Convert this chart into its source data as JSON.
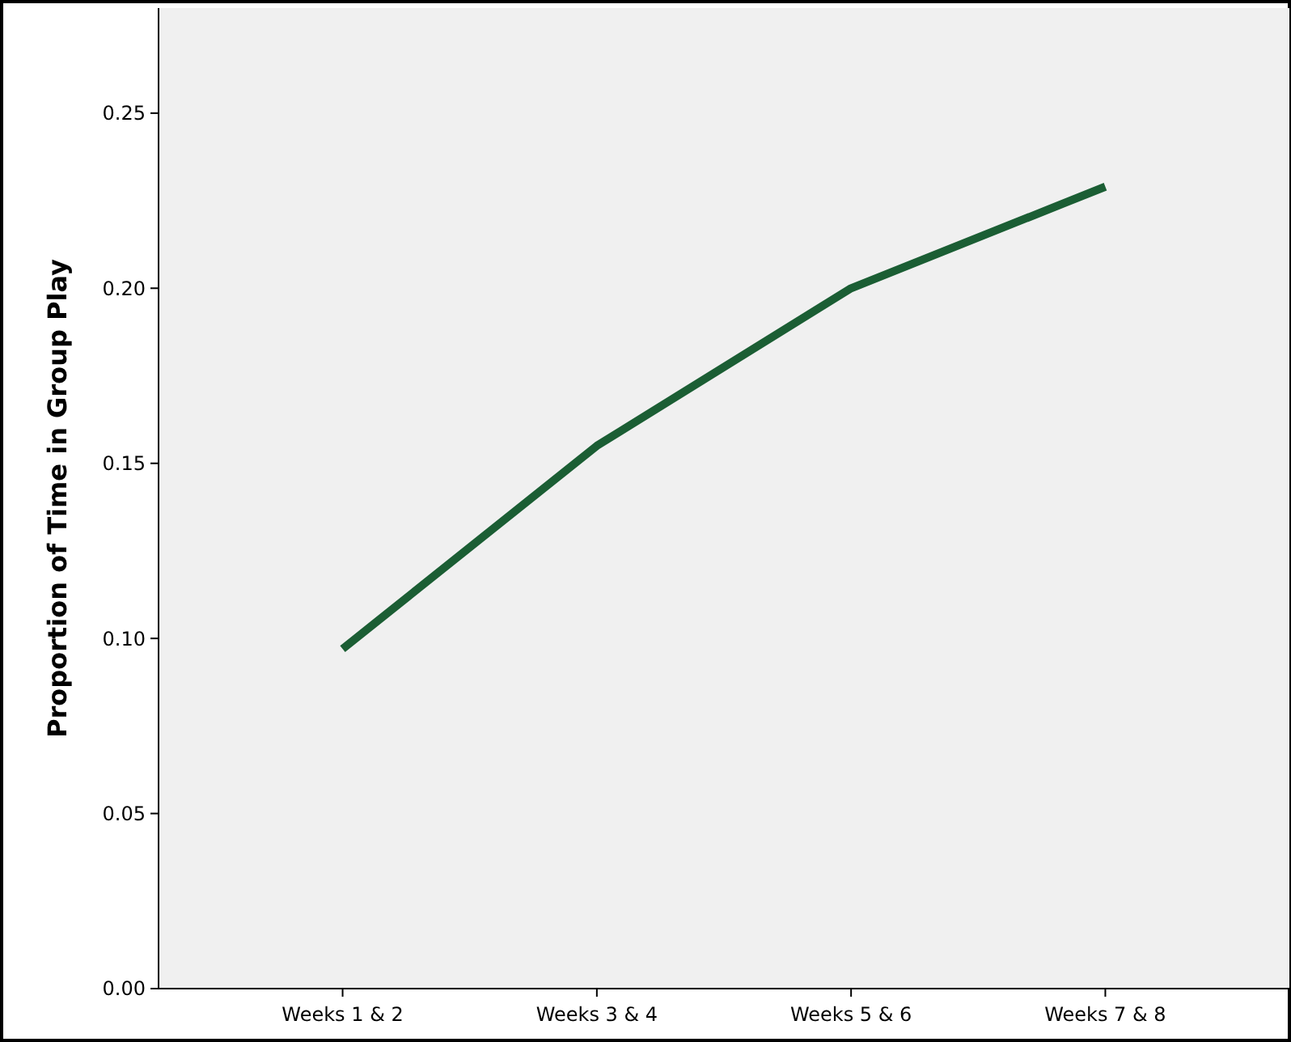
{
  "chart_data": {
    "type": "line",
    "ylabel": "Proportion of Time in Group Play",
    "categories": [
      "Weeks 1 & 2",
      "Weeks 3 & 4",
      "Weeks 5 & 6",
      "Weeks 7 & 8"
    ],
    "series": [
      {
        "color": "#1b5e34",
        "values": [
          0.097,
          0.155,
          0.2,
          0.229
        ]
      }
    ],
    "ylim": [
      0,
      0.28
    ],
    "yticks": [
      {
        "value": 0,
        "label": "0.00"
      },
      {
        "value": 0.05,
        "label": "0.05"
      },
      {
        "value": 0.1,
        "label": "0.10"
      },
      {
        "value": 0.15,
        "label": "0.15"
      },
      {
        "value": 0.2,
        "label": "0.20"
      },
      {
        "value": 0.25,
        "label": "0.25"
      }
    ],
    "grid": false,
    "marker": "none",
    "line_style": "solid"
  }
}
